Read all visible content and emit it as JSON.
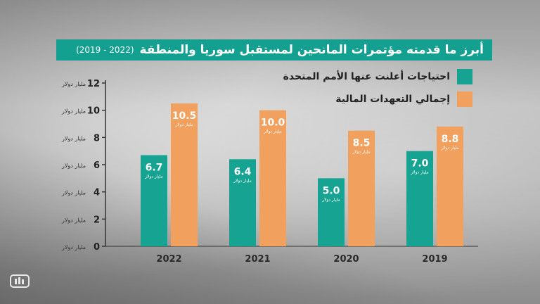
{
  "title": "أبرز ما قدمته مؤتمرات المانحين لمستقبل سوريا والمنطقة",
  "subtitle": "(2022 - 2019)",
  "value_unit": "مليار دولار",
  "colors": {
    "pledge": "#f2a05e",
    "need": "#17a392",
    "axis": "#333333"
  },
  "legend": [
    {
      "key": "need",
      "label": "احتياجات أعلنت عنها الأمم المتحدة",
      "color": "#17a392"
    },
    {
      "key": "pledge",
      "label": "إجمالي التعهدات المالية",
      "color": "#f2a05e"
    }
  ],
  "chart_data": {
    "type": "bar",
    "categories": [
      "2022",
      "2021",
      "2020",
      "2019"
    ],
    "series": [
      {
        "name": "احتياجات أعلنت عنها الأمم المتحدة",
        "values": [
          6.7,
          6.4,
          5.0,
          7.0
        ]
      },
      {
        "name": "إجمالي التعهدات المالية",
        "values": [
          10.5,
          10.0,
          8.5,
          8.8
        ]
      }
    ],
    "data_labels": [
      [
        "6.7",
        "6.4",
        "5.0",
        "7.0"
      ],
      [
        "10.5",
        "10.0",
        "8.5",
        "8.8"
      ]
    ],
    "yticks": [
      {
        "value": 0,
        "label": "0"
      },
      {
        "value": 2,
        "label": "2"
      },
      {
        "value": 4,
        "label": "4"
      },
      {
        "value": 6,
        "label": "6"
      },
      {
        "value": 8,
        "label": "8"
      },
      {
        "value": 10,
        "label": "10"
      },
      {
        "value": 12,
        "label": "12"
      }
    ],
    "ylim": [
      0,
      12
    ],
    "ylabel": "مليار دولار",
    "xlabel": "",
    "grid": false,
    "legend_position": "top-right"
  }
}
